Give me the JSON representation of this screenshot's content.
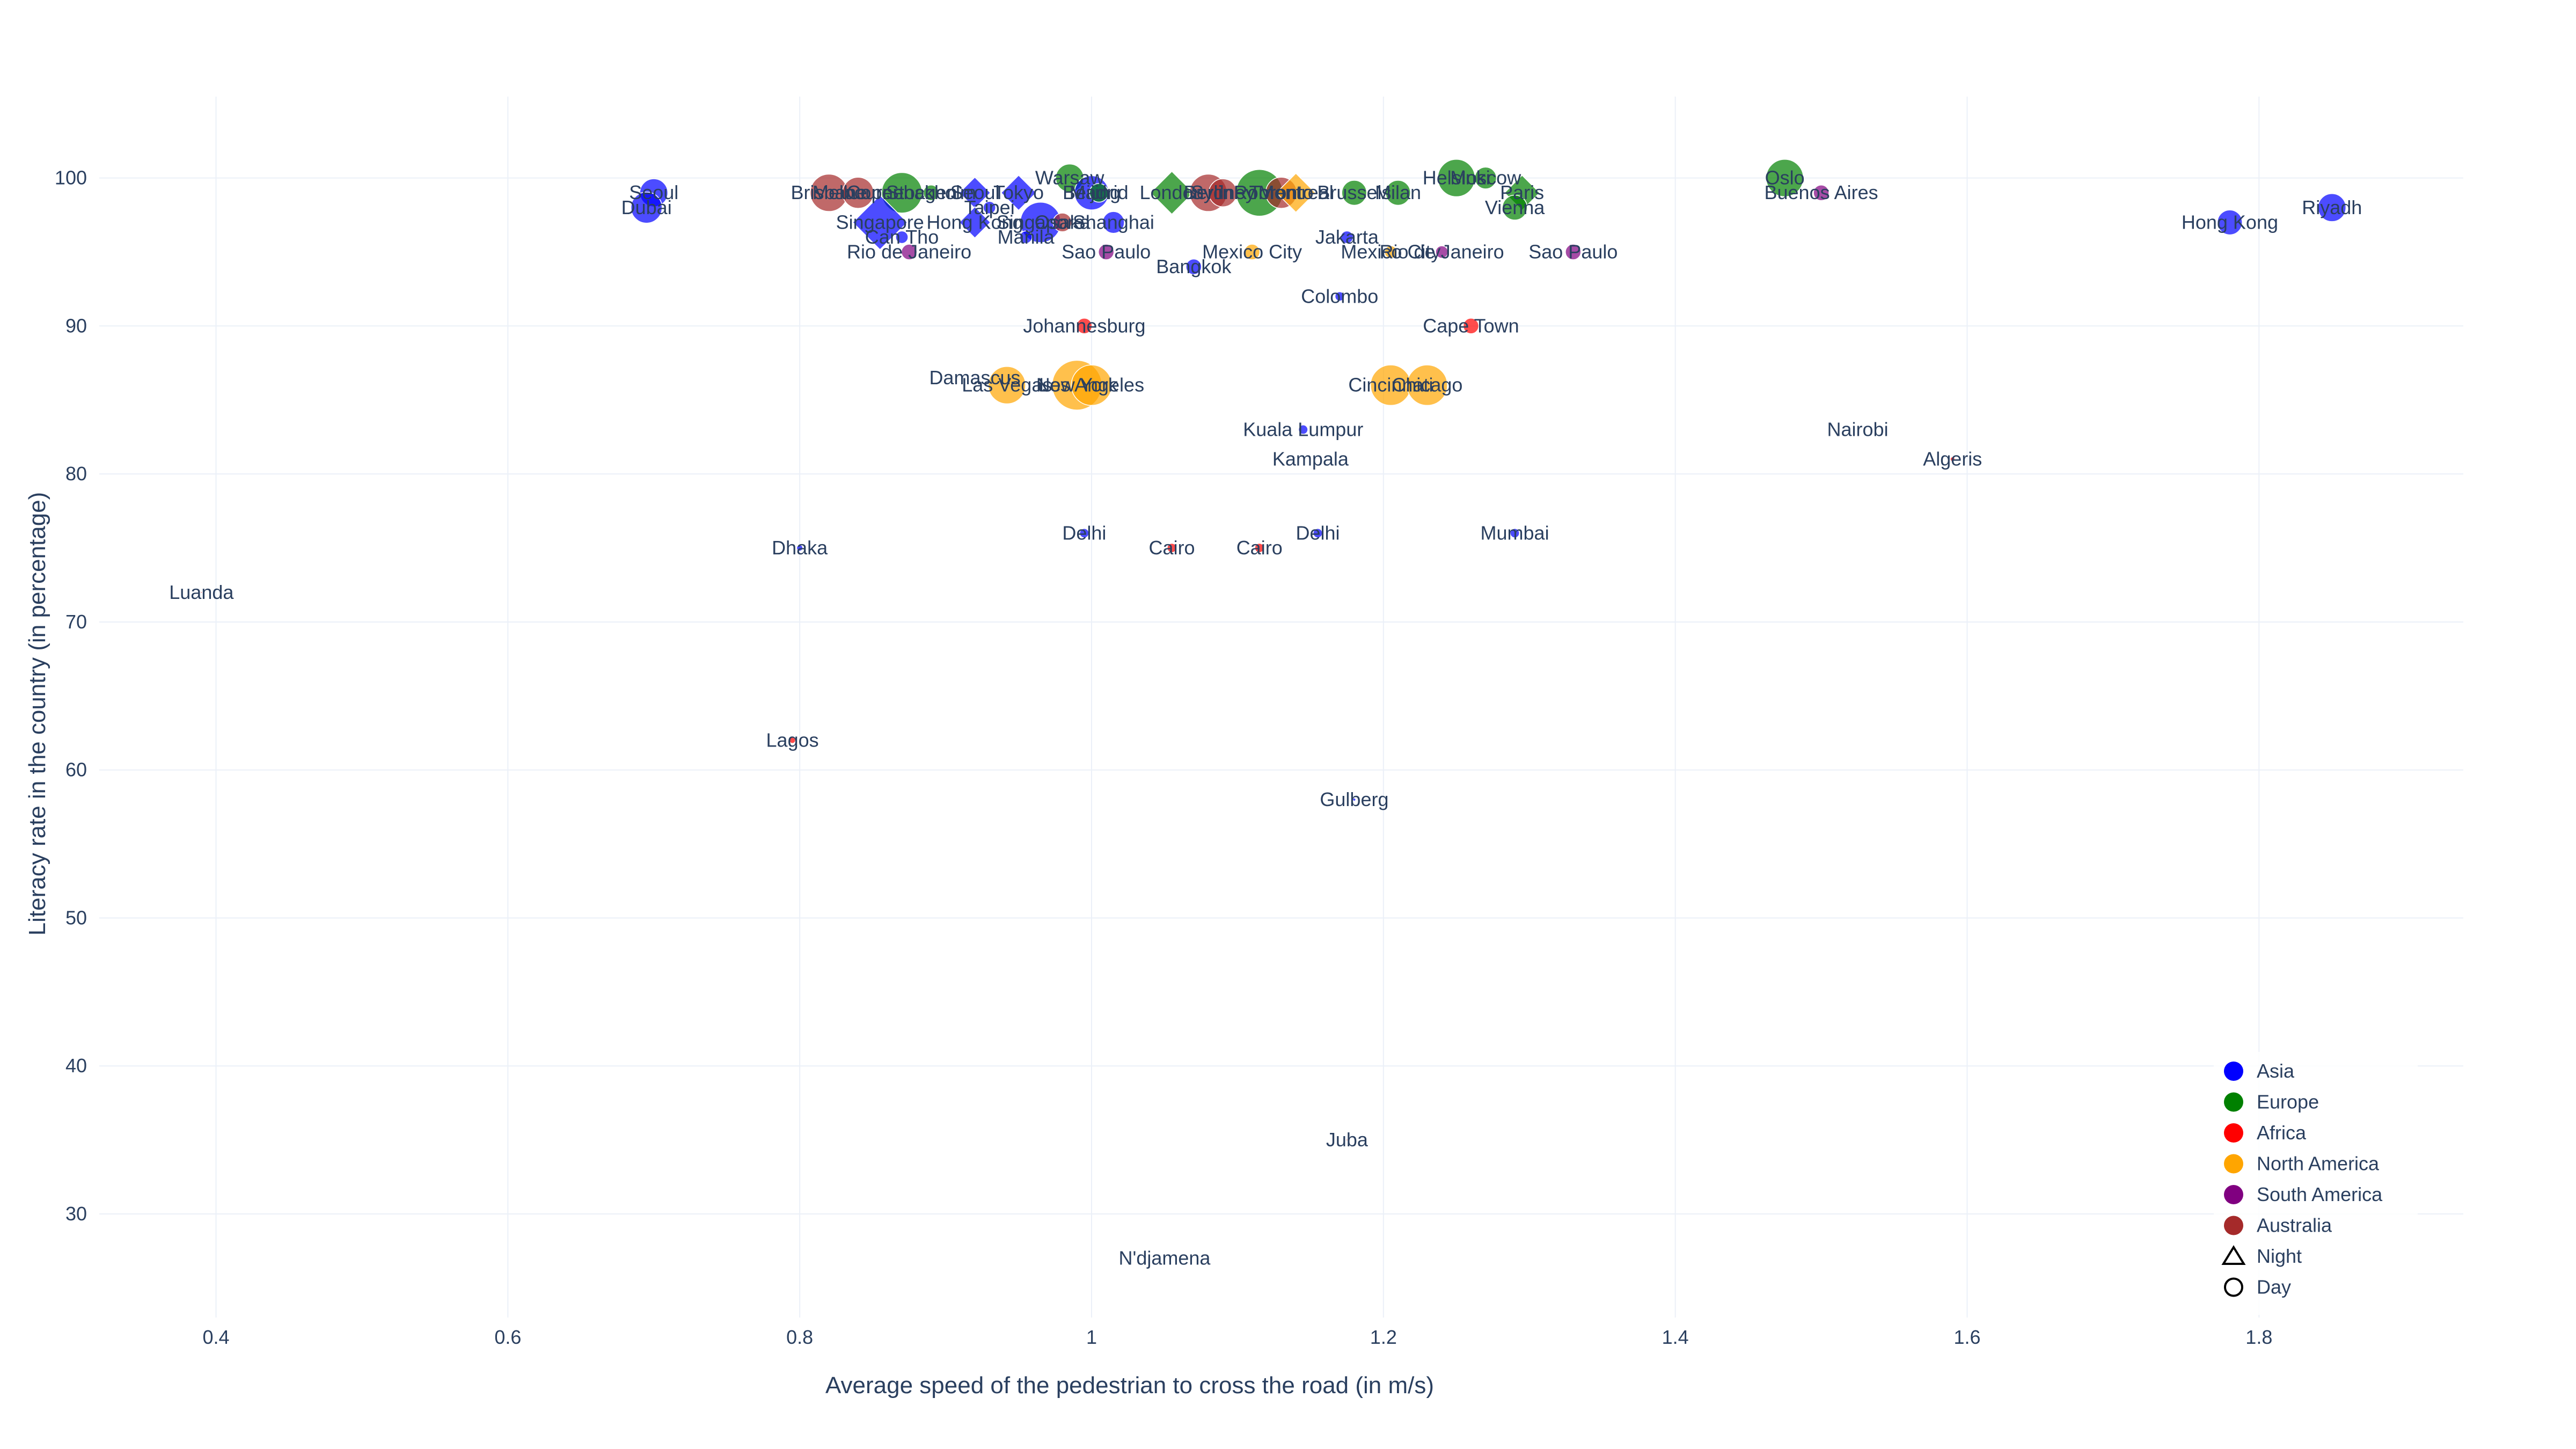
{
  "chart_data": {
    "type": "scatter",
    "xlabel": "Average speed of the pedestrian to cross the road (in m/s)",
    "ylabel": "Literacy rate in the country (in percentage)",
    "xlim": [
      0.32,
      1.94
    ],
    "ylim": [
      23,
      105.5
    ],
    "xticks": [
      0.4,
      0.6,
      0.8,
      1,
      1.2,
      1.4,
      1.6,
      1.8
    ],
    "xtick_labels": [
      "0.4",
      "0.6",
      "0.8",
      "1",
      "1.2",
      "1.4",
      "1.6",
      "1.8"
    ],
    "yticks": [
      30,
      40,
      50,
      60,
      70,
      80,
      90,
      100
    ],
    "ytick_labels": [
      "30",
      "40",
      "50",
      "60",
      "70",
      "80",
      "90",
      "100"
    ],
    "grid": true,
    "legend_placement": "bottom-right",
    "colors": {
      "Asia": "#0000ff",
      "Europe": "#008000",
      "Africa": "#ff0000",
      "North America": "#ffa500",
      "South America": "#800080",
      "Australia": "#a52a2a"
    },
    "legend": [
      {
        "label": "Asia",
        "kind": "color",
        "color": "#0000ff"
      },
      {
        "label": "Europe",
        "kind": "color",
        "color": "#008000"
      },
      {
        "label": "Africa",
        "kind": "color",
        "color": "#ff0000"
      },
      {
        "label": "North America",
        "kind": "color",
        "color": "#ffa500"
      },
      {
        "label": "South America",
        "kind": "color",
        "color": "#800080"
      },
      {
        "label": "Australia",
        "kind": "color",
        "color": "#a52a2a"
      },
      {
        "label": "Night",
        "kind": "symbol",
        "symbol": "triangle"
      },
      {
        "label": "Day",
        "kind": "symbol",
        "symbol": "circle"
      }
    ],
    "points": [
      {
        "label": "Seoul",
        "x": 0.7,
        "y": 99,
        "region": "Asia",
        "symbol": "circle",
        "size": 18
      },
      {
        "label": "Dubai",
        "x": 0.695,
        "y": 98,
        "region": "Asia",
        "symbol": "circle",
        "size": 20
      },
      {
        "label": "Brisbane",
        "x": 0.82,
        "y": 99,
        "region": "Australia",
        "symbol": "circle",
        "size": 24
      },
      {
        "label": "Melbourne",
        "x": 0.84,
        "y": 99,
        "region": "Australia",
        "symbol": "circle",
        "size": 20
      },
      {
        "label": "Copenhagen",
        "x": 0.87,
        "y": 99,
        "region": "Europe",
        "symbol": "circle",
        "size": 26
      },
      {
        "label": "Stockholm",
        "x": 0.89,
        "y": 99,
        "region": "Europe",
        "symbol": "circle",
        "size": 10
      },
      {
        "label": "Seoul",
        "x": 0.92,
        "y": 99,
        "region": "Asia",
        "symbol": "diamond",
        "size": 16
      },
      {
        "label": "Tokyo",
        "x": 0.95,
        "y": 99,
        "region": "Asia",
        "symbol": "diamond",
        "size": 18
      },
      {
        "label": "Warsaw",
        "x": 0.985,
        "y": 100,
        "region": "Europe",
        "symbol": "circle",
        "size": 18
      },
      {
        "label": "Beijing",
        "x": 1.0,
        "y": 99,
        "region": "Asia",
        "symbol": "circle",
        "size": 22
      },
      {
        "label": "Madrid",
        "x": 1.005,
        "y": 99,
        "region": "Europe",
        "symbol": "circle",
        "size": 12
      },
      {
        "label": "London",
        "x": 1.055,
        "y": 99,
        "region": "Europe",
        "symbol": "diamond",
        "size": 22
      },
      {
        "label": "Berlin",
        "x": 1.08,
        "y": 99,
        "region": "Australia",
        "symbol": "circle",
        "size": 24
      },
      {
        "label": "Sydney",
        "x": 1.09,
        "y": 99,
        "region": "Australia",
        "symbol": "circle",
        "size": 18
      },
      {
        "label": "Rome",
        "x": 1.115,
        "y": 99,
        "region": "Europe",
        "symbol": "circle",
        "size": 30
      },
      {
        "label": "Toronto",
        "x": 1.13,
        "y": 99,
        "region": "Australia",
        "symbol": "circle",
        "size": 20
      },
      {
        "label": "Montreal",
        "x": 1.14,
        "y": 99,
        "region": "North America",
        "symbol": "diamond",
        "size": 20
      },
      {
        "label": "Brussels",
        "x": 1.18,
        "y": 99,
        "region": "Europe",
        "symbol": "circle",
        "size": 16
      },
      {
        "label": "Milan",
        "x": 1.21,
        "y": 99,
        "region": "Europe",
        "symbol": "circle",
        "size": 16
      },
      {
        "label": "Helsinki",
        "x": 1.25,
        "y": 100,
        "region": "Europe",
        "symbol": "circle",
        "size": 24
      },
      {
        "label": "Moscow",
        "x": 1.27,
        "y": 100,
        "region": "Europe",
        "symbol": "circle",
        "size": 14
      },
      {
        "label": "Paris",
        "x": 1.295,
        "y": 99,
        "region": "Europe",
        "symbol": "diamond",
        "size": 18
      },
      {
        "label": "Vienna",
        "x": 1.29,
        "y": 98,
        "region": "Europe",
        "symbol": "circle",
        "size": 16
      },
      {
        "label": "Oslo",
        "x": 1.475,
        "y": 100,
        "region": "Europe",
        "symbol": "circle",
        "size": 24
      },
      {
        "label": "Buenos Aires",
        "x": 1.5,
        "y": 99,
        "region": "South America",
        "symbol": "circle",
        "size": 10
      },
      {
        "label": "Hong Kong",
        "x": 1.78,
        "y": 97,
        "region": "Asia",
        "symbol": "circle",
        "size": 16
      },
      {
        "label": "Riyadh",
        "x": 1.85,
        "y": 98,
        "region": "Asia",
        "symbol": "circle",
        "size": 18
      },
      {
        "label": "Singapore",
        "x": 0.855,
        "y": 97,
        "region": "Asia",
        "symbol": "diamond",
        "size": 28
      },
      {
        "label": "Hong Kong",
        "x": 0.92,
        "y": 97,
        "region": "Asia",
        "symbol": "diamond",
        "size": 16
      },
      {
        "label": "Singapore",
        "x": 0.965,
        "y": 97,
        "region": "Asia",
        "symbol": "circle",
        "size": 26
      },
      {
        "label": "Shanghai",
        "x": 1.015,
        "y": 97,
        "region": "Asia",
        "symbol": "circle",
        "size": 14
      },
      {
        "label": "Osaka",
        "x": 0.98,
        "y": 97,
        "region": "Australia",
        "symbol": "circle",
        "size": 12
      },
      {
        "label": "Taipei",
        "x": 0.93,
        "y": 98,
        "region": "Asia",
        "symbol": "circle",
        "size": 8
      },
      {
        "label": "Can Tho",
        "x": 0.87,
        "y": 96,
        "region": "Asia",
        "symbol": "circle",
        "size": 8
      },
      {
        "label": "Manila",
        "x": 0.955,
        "y": 96,
        "region": "Asia",
        "symbol": "circle",
        "size": 8
      },
      {
        "label": "Rio de Janeiro",
        "x": 0.875,
        "y": 95,
        "region": "South America",
        "symbol": "circle",
        "size": 10
      },
      {
        "label": "Sao Paulo",
        "x": 1.01,
        "y": 95,
        "region": "South America",
        "symbol": "circle",
        "size": 10
      },
      {
        "label": "Bangkok",
        "x": 1.07,
        "y": 94,
        "region": "Asia",
        "symbol": "circle",
        "size": 10
      },
      {
        "label": "Mexico City",
        "x": 1.11,
        "y": 95,
        "region": "North America",
        "symbol": "circle",
        "size": 10
      },
      {
        "label": "Jakarta",
        "x": 1.175,
        "y": 96,
        "region": "Asia",
        "symbol": "circle",
        "size": 8
      },
      {
        "label": "Mexico City",
        "x": 1.205,
        "y": 95,
        "region": "North America",
        "symbol": "circle",
        "size": 8
      },
      {
        "label": "Rio de Janeiro",
        "x": 1.24,
        "y": 95,
        "region": "South America",
        "symbol": "circle",
        "size": 8
      },
      {
        "label": "Sao Paulo",
        "x": 1.33,
        "y": 95,
        "region": "South America",
        "symbol": "circle",
        "size": 10
      },
      {
        "label": "Colombo",
        "x": 1.17,
        "y": 92,
        "region": "Asia",
        "symbol": "circle",
        "size": 6
      },
      {
        "label": "Johannesburg",
        "x": 0.995,
        "y": 90,
        "region": "Africa",
        "symbol": "circle",
        "size": 10
      },
      {
        "label": "Cape Town",
        "x": 1.26,
        "y": 90,
        "region": "Africa",
        "symbol": "circle",
        "size": 10
      },
      {
        "label": "Damascus",
        "x": 0.92,
        "y": 86.5,
        "region": "Asia",
        "symbol": "circle",
        "size": 1
      },
      {
        "label": "Las Vegas",
        "x": 0.942,
        "y": 86,
        "region": "North America",
        "symbol": "circle",
        "size": 24
      },
      {
        "label": "New York",
        "x": 0.99,
        "y": 86,
        "region": "North America",
        "symbol": "circle",
        "size": 32
      },
      {
        "label": "Los Angeles",
        "x": 1.0,
        "y": 86,
        "region": "North America",
        "symbol": "circle",
        "size": 26
      },
      {
        "label": "Cincinnati",
        "x": 1.205,
        "y": 86,
        "region": "North America",
        "symbol": "circle",
        "size": 26
      },
      {
        "label": "Chicago",
        "x": 1.23,
        "y": 86,
        "region": "North America",
        "symbol": "circle",
        "size": 26
      },
      {
        "label": "Kuala Lumpur",
        "x": 1.145,
        "y": 83,
        "region": "Asia",
        "symbol": "circle",
        "size": 6
      },
      {
        "label": "Kampala",
        "x": 1.15,
        "y": 81,
        "region": "Africa",
        "symbol": "circle",
        "size": 1
      },
      {
        "label": "Nairobi",
        "x": 1.525,
        "y": 83,
        "region": "Africa",
        "symbol": "circle",
        "size": 1
      },
      {
        "label": "Algeris",
        "x": 1.59,
        "y": 81,
        "region": "Africa",
        "symbol": "circle",
        "size": 3
      },
      {
        "label": "Dhaka",
        "x": 0.8,
        "y": 75,
        "region": "Asia",
        "symbol": "circle",
        "size": 4
      },
      {
        "label": "Delhi",
        "x": 0.995,
        "y": 76,
        "region": "Asia",
        "symbol": "circle",
        "size": 6
      },
      {
        "label": "Cairo",
        "x": 1.055,
        "y": 75,
        "region": "Africa",
        "symbol": "circle",
        "size": 6
      },
      {
        "label": "Cairo",
        "x": 1.115,
        "y": 75,
        "region": "Africa",
        "symbol": "circle",
        "size": 6
      },
      {
        "label": "Delhi",
        "x": 1.155,
        "y": 76,
        "region": "Asia",
        "symbol": "circle",
        "size": 6
      },
      {
        "label": "Mumbai",
        "x": 1.29,
        "y": 76,
        "region": "Asia",
        "symbol": "circle",
        "size": 6
      },
      {
        "label": "Luanda",
        "x": 0.39,
        "y": 72,
        "region": "Africa",
        "symbol": "circle",
        "size": 1
      },
      {
        "label": "Lagos",
        "x": 0.795,
        "y": 62,
        "region": "Africa",
        "symbol": "circle",
        "size": 4
      },
      {
        "label": "Gulberg",
        "x": 1.18,
        "y": 58,
        "region": "Asia",
        "symbol": "circle",
        "size": 2
      },
      {
        "label": "Juba",
        "x": 1.175,
        "y": 35,
        "region": "Africa",
        "symbol": "circle",
        "size": 1
      },
      {
        "label": "N'djamena",
        "x": 1.05,
        "y": 27,
        "region": "Africa",
        "symbol": "circle",
        "size": 1
      }
    ]
  }
}
